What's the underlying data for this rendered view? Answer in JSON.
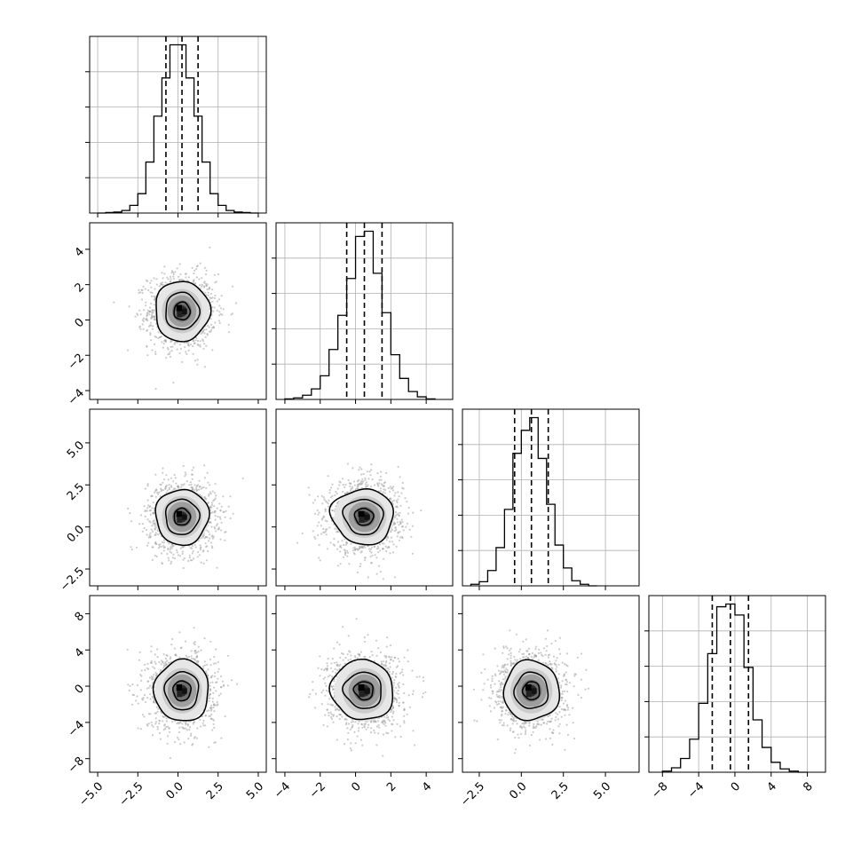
{
  "chart_data": {
    "type": "corner",
    "variables": [
      {
        "range": [
          -5.5,
          5.5
        ],
        "ticks": [
          -5.0,
          -2.5,
          0.0,
          2.5,
          5.0
        ],
        "tick_labels": [
          "−5.0",
          "−2.5",
          "0.0",
          "2.5",
          "5.0"
        ],
        "mean": 0.25,
        "sd": 1.0,
        "quantiles": [
          -0.75,
          0.25,
          1.25
        ],
        "hist_x": [
          -5.0,
          -4.5,
          -4.0,
          -3.5,
          -3.0,
          -2.5,
          -2.0,
          -1.5,
          -1.0,
          -0.5,
          0.0,
          0.5,
          1.0,
          1.5,
          2.0,
          2.5,
          3.0,
          3.5,
          4.0,
          4.5,
          5.0
        ],
        "hist_y": [
          0,
          1,
          2,
          5,
          15,
          38,
          100,
          190,
          265,
          330,
          330,
          265,
          190,
          100,
          38,
          15,
          5,
          2,
          1,
          0
        ]
      },
      {
        "range": [
          -4.5,
          5.5
        ],
        "ticks": [
          -4,
          -2,
          0,
          2,
          4
        ],
        "tick_labels": [
          "−4",
          "−2",
          "0",
          "2",
          "4"
        ],
        "mean": 0.5,
        "sd": 1.0,
        "quantiles": [
          -0.5,
          0.5,
          1.5
        ],
        "hist_x": [
          -4.0,
          -3.5,
          -3.0,
          -2.5,
          -2.0,
          -1.5,
          -1.0,
          -0.5,
          0.0,
          0.5,
          1.0,
          1.5,
          2.0,
          2.5,
          3.0,
          3.5,
          4.0,
          4.5
        ],
        "hist_y": [
          1,
          3,
          8,
          20,
          45,
          95,
          160,
          230,
          310,
          320,
          240,
          165,
          85,
          40,
          15,
          5,
          1
        ]
      },
      {
        "range": [
          -3.5,
          7.0
        ],
        "ticks": [
          -2.5,
          0.0,
          2.5,
          5.0
        ],
        "tick_labels": [
          "−2.5",
          "0.0",
          "2.5",
          "5.0"
        ],
        "mean": 0.6,
        "sd": 1.0,
        "quantiles": [
          -0.4,
          0.6,
          1.6
        ],
        "hist_x": [
          -3.0,
          -2.5,
          -2.0,
          -1.5,
          -1.0,
          -0.5,
          0.0,
          0.5,
          1.0,
          1.5,
          2.0,
          2.5,
          3.0,
          3.5,
          4.0,
          4.5
        ],
        "hist_y": [
          3,
          8,
          30,
          75,
          150,
          260,
          305,
          330,
          250,
          160,
          80,
          35,
          10,
          3,
          0
        ]
      },
      {
        "range": [
          -9.5,
          10.0
        ],
        "ticks": [
          -8,
          -4,
          0,
          4,
          8
        ],
        "tick_labels": [
          "−8",
          "−4",
          "0",
          "4",
          "8"
        ],
        "mean": -0.5,
        "sd": 2.0,
        "quantiles": [
          -2.5,
          -0.5,
          1.5
        ],
        "hist_x": [
          -8.0,
          -7.0,
          -6.0,
          -5.0,
          -4.0,
          -3.0,
          -2.0,
          -1.0,
          0.0,
          1.0,
          2.0,
          3.0,
          4.0,
          5.0,
          6.0,
          7.0,
          8.0
        ],
        "hist_y": [
          2,
          8,
          25,
          60,
          125,
          215,
          300,
          305,
          285,
          190,
          95,
          45,
          18,
          6,
          2,
          0
        ]
      }
    ],
    "pairs": [
      {
        "row": 1,
        "col": 0,
        "ring_scales": [
          0.5,
          1.05,
          1.7
        ],
        "skew": 0.0
      },
      {
        "row": 2,
        "col": 0,
        "ring_scales": [
          0.5,
          1.05,
          1.65
        ],
        "skew": 0.0
      },
      {
        "row": 2,
        "col": 1,
        "ring_scales": [
          0.5,
          1.05,
          1.65
        ],
        "skew": 0.35
      },
      {
        "row": 3,
        "col": 0,
        "ring_scales": [
          0.55,
          1.05,
          1.7
        ],
        "skew": 0.0
      },
      {
        "row": 3,
        "col": 1,
        "ring_scales": [
          0.5,
          1.0,
          1.65
        ],
        "skew": 0.45
      },
      {
        "row": 3,
        "col": 2,
        "ring_scales": [
          0.5,
          1.0,
          1.65
        ],
        "skew": 0.0
      }
    ],
    "grid": true
  }
}
